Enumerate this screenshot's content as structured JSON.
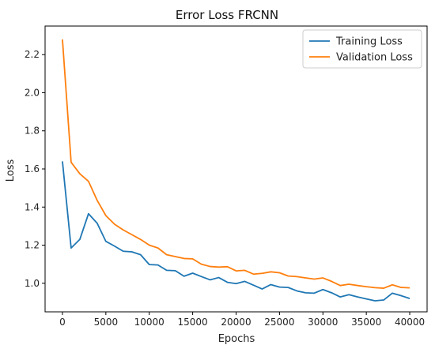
{
  "chart_data": {
    "type": "line",
    "title": "Error Loss FRCNN",
    "xlabel": "Epochs",
    "ylabel": "Loss",
    "xlim": [
      -2000,
      42000
    ],
    "ylim": [
      0.85,
      2.35
    ],
    "x_ticks": [
      0,
      5000,
      10000,
      15000,
      20000,
      25000,
      30000,
      35000,
      40000
    ],
    "y_ticks": [
      1.0,
      1.2,
      1.4,
      1.6,
      1.8,
      2.0,
      2.2
    ],
    "grid": false,
    "legend_position": "top-right",
    "x": [
      0,
      1000,
      2000,
      3000,
      4000,
      5000,
      6000,
      7000,
      8000,
      9000,
      10000,
      11000,
      12000,
      13000,
      14000,
      15000,
      16000,
      17000,
      18000,
      19000,
      20000,
      21000,
      22000,
      23000,
      24000,
      25000,
      26000,
      27000,
      28000,
      29000,
      30000,
      31000,
      32000,
      33000,
      34000,
      35000,
      36000,
      37000,
      38000,
      39000,
      40000
    ],
    "series": [
      {
        "name": "Training Loss",
        "color": "#1f77b4",
        "values": [
          1.64,
          1.185,
          1.23,
          1.365,
          1.315,
          1.22,
          1.195,
          1.168,
          1.165,
          1.15,
          1.098,
          1.096,
          1.068,
          1.066,
          1.037,
          1.053,
          1.035,
          1.018,
          1.03,
          1.005,
          0.998,
          1.01,
          0.99,
          0.97,
          0.993,
          0.98,
          0.978,
          0.96,
          0.95,
          0.948,
          0.967,
          0.95,
          0.928,
          0.94,
          0.928,
          0.918,
          0.908,
          0.912,
          0.948,
          0.935,
          0.92
        ]
      },
      {
        "name": "Validation Loss",
        "color": "#ff7f0e",
        "values": [
          2.28,
          1.635,
          1.575,
          1.535,
          1.435,
          1.355,
          1.31,
          1.28,
          1.255,
          1.23,
          1.2,
          1.185,
          1.15,
          1.14,
          1.13,
          1.128,
          1.1,
          1.088,
          1.085,
          1.087,
          1.065,
          1.068,
          1.048,
          1.052,
          1.06,
          1.055,
          1.038,
          1.035,
          1.028,
          1.022,
          1.028,
          1.01,
          0.988,
          0.995,
          0.988,
          0.982,
          0.977,
          0.974,
          0.992,
          0.978,
          0.976
        ]
      }
    ]
  }
}
